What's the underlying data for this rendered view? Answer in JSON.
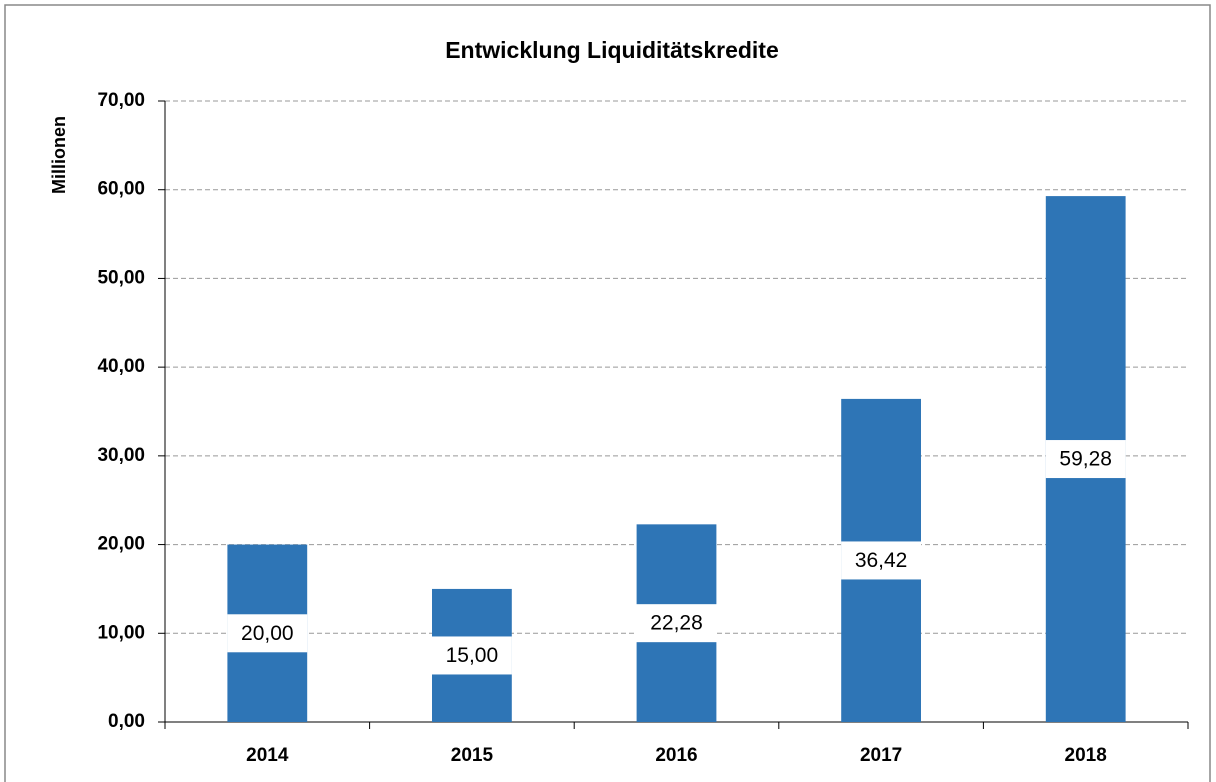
{
  "chart_data": {
    "type": "bar",
    "title": "Entwicklung Liquiditätskredite",
    "y_label": "Millionen",
    "categories": [
      "2014",
      "2015",
      "2016",
      "2017",
      "2018"
    ],
    "values": [
      20,
      15,
      22.28,
      36.42,
      59.28
    ],
    "value_labels": [
      "20,00",
      "15,00",
      "22,28",
      "36,42",
      "59,28"
    ],
    "color": "#2e75b6",
    "ylim": [
      0,
      70
    ],
    "yticks": [
      {
        "value": 0,
        "label": "0,00"
      },
      {
        "value": 10,
        "label": "10,00"
      },
      {
        "value": 20,
        "label": "20,00"
      },
      {
        "value": 30,
        "label": "30,00"
      },
      {
        "value": 40,
        "label": "40,00"
      },
      {
        "value": 50,
        "label": "50,00"
      },
      {
        "value": 60,
        "label": "60,00"
      },
      {
        "value": 70,
        "label": "70,00"
      }
    ],
    "grid": true
  }
}
